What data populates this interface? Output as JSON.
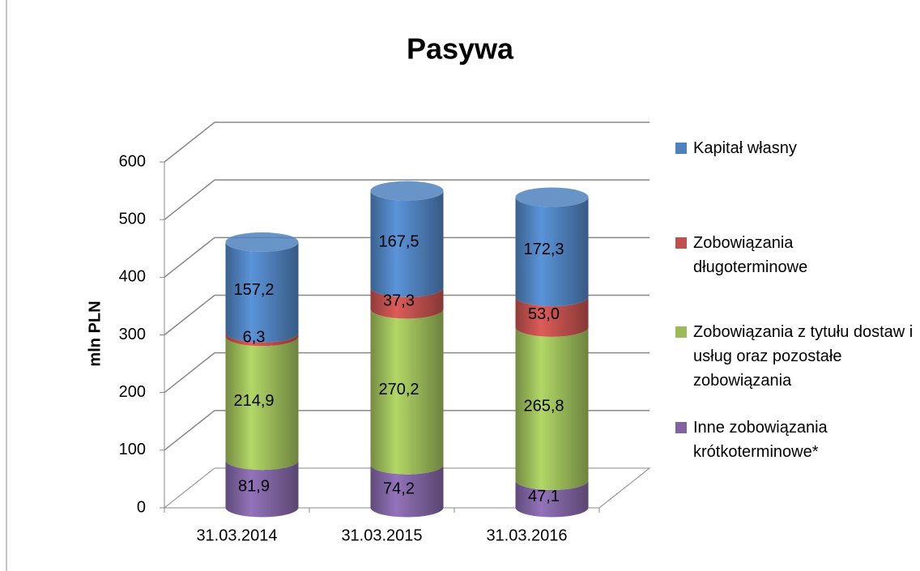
{
  "chart_data": {
    "type": "bar3d-cylinder-stacked",
    "title": "Pasywa",
    "y_label": "mln PLN",
    "categories": [
      "31.03.2014",
      "31.03.2015",
      "31.03.2016"
    ],
    "series": [
      {
        "name": "Inne zobowiązania krótkoterminowe*",
        "color": "#8064a2",
        "values": [
          81.9,
          74.2,
          47.1
        ],
        "value_labels": [
          "81,9",
          "74,2",
          "47,1"
        ]
      },
      {
        "name": "Zobowiązania z tytułu dostaw i usług oraz pozostałe zobowiązania",
        "color": "#9bbb59",
        "values": [
          214.9,
          270.2,
          265.8
        ],
        "value_labels": [
          "214,9",
          "270,2",
          "265,8"
        ]
      },
      {
        "name": "Zobowiązania długoterminowe",
        "color": "#c0504d",
        "values": [
          6.3,
          37.3,
          53.0
        ],
        "value_labels": [
          "6,3",
          "37,3",
          "53,0"
        ]
      },
      {
        "name": "Kapitał własny",
        "color": "#4f81bd",
        "values": [
          157.2,
          167.5,
          172.3
        ],
        "value_labels": [
          "157,2",
          "167,5",
          "172,3"
        ]
      }
    ],
    "ylim": [
      0,
      600
    ],
    "yticks": [
      0,
      100,
      200,
      300,
      400,
      500,
      600
    ],
    "grid": true,
    "legend": "right"
  }
}
